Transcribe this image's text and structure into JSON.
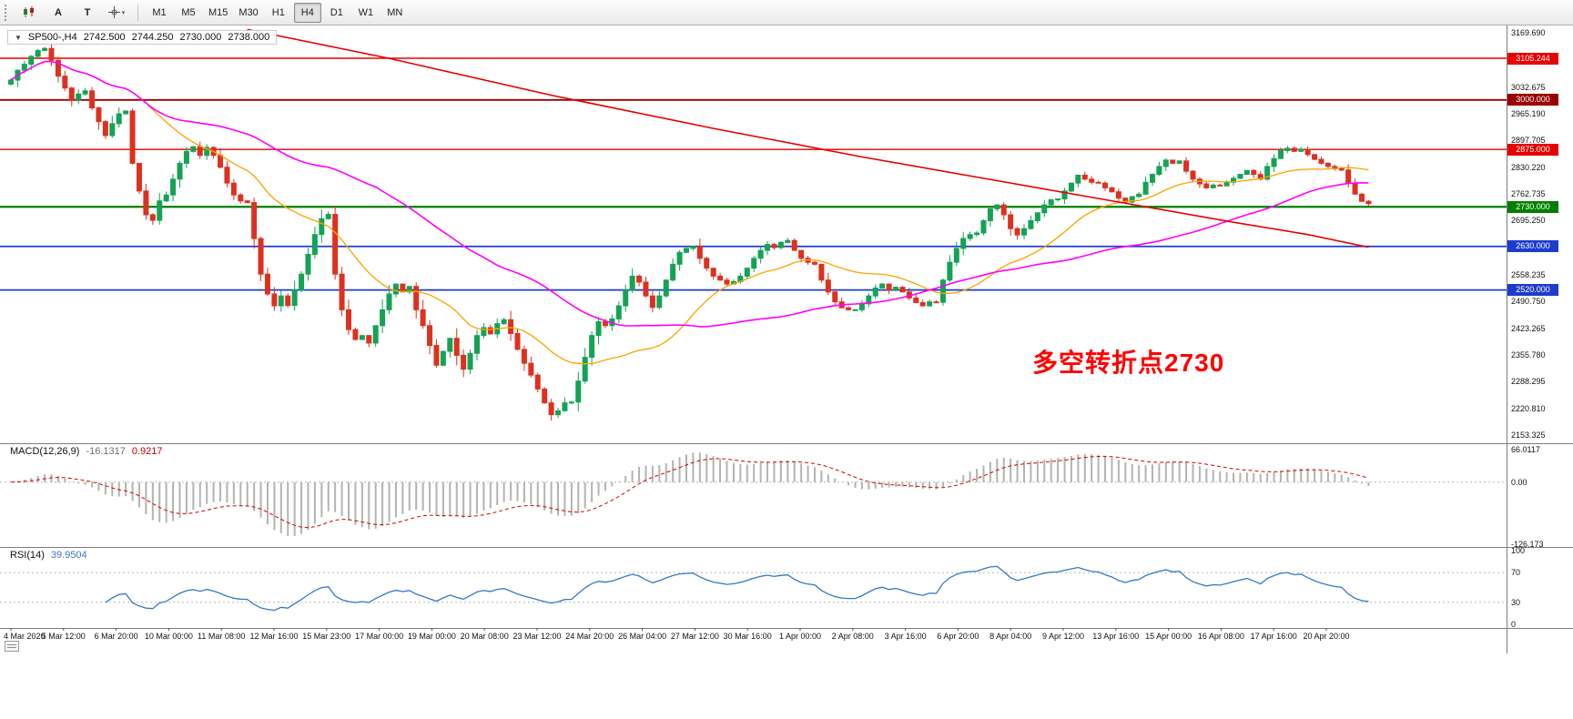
{
  "toolbar": {
    "icon_buttons": [
      {
        "name": "chart-type-icon"
      },
      {
        "name": "font-tool-button",
        "label": "A"
      },
      {
        "name": "text-tool-button",
        "label": "T"
      },
      {
        "name": "crosshair-tool-button",
        "dropdown": "▾"
      }
    ],
    "timeframes": [
      "M1",
      "M5",
      "M15",
      "M30",
      "H1",
      "H4",
      "D1",
      "W1",
      "MN"
    ],
    "active_timeframe": "H4"
  },
  "chart": {
    "symbol_header": {
      "collapse_icon": "▼",
      "symbol": "SP500-,H4",
      "open": "2742.500",
      "high": "2744.250",
      "low": "2730.000",
      "close": "2738.000"
    },
    "annotation": {
      "text": "多空转折点2730",
      "color": "#ff0000"
    },
    "price_axis_labels": [
      "3169.690",
      "3032.675",
      "2965.190",
      "2897.705",
      "2830.220",
      "2762.735",
      "2695.250",
      "2558.235",
      "2490.750",
      "2423.265",
      "2355.780",
      "2288.295",
      "2220.810",
      "2153.325"
    ],
    "levels": [
      {
        "label": "3105.244",
        "price": 3105.244,
        "color": "#e60000",
        "width": 1.4
      },
      {
        "label": "3000.000",
        "price": 3000.0,
        "color": "#990000",
        "width": 1.8
      },
      {
        "label": "2875.000",
        "price": 2875.0,
        "color": "#e60000",
        "width": 1.4
      },
      {
        "label": "2730.000",
        "price": 2730.0,
        "color": "#008000",
        "width": 2.2
      },
      {
        "label": "2630.000",
        "price": 2630.0,
        "color": "#1e3ccc",
        "width": 1.8
      },
      {
        "label": "2520.000",
        "price": 2520.0,
        "color": "#1e3ccc",
        "width": 1.8
      }
    ]
  },
  "chart_data": {
    "type": "candlestick",
    "symbol": "SP500-",
    "timeframe": "H4",
    "ylim": {
      "top": 3188,
      "bottom": 2133
    },
    "first_open": 3040,
    "closes": [
      3050,
      3075,
      3090,
      3110,
      3125,
      3130,
      3100,
      3060,
      3030,
      3000,
      3015,
      3023,
      2980,
      2945,
      2910,
      2940,
      2965,
      2972,
      2840,
      2770,
      2710,
      2696,
      2745,
      2760,
      2800,
      2840,
      2870,
      2882,
      2860,
      2880,
      2860,
      2830,
      2790,
      2760,
      2745,
      2741,
      2650,
      2560,
      2510,
      2480,
      2505,
      2481,
      2520,
      2560,
      2610,
      2660,
      2700,
      2711,
      2560,
      2470,
      2420,
      2395,
      2405,
      2386,
      2430,
      2470,
      2510,
      2535,
      2515,
      2529,
      2470,
      2430,
      2380,
      2330,
      2365,
      2398,
      2355,
      2320,
      2360,
      2405,
      2425,
      2409,
      2435,
      2445,
      2410,
      2370,
      2335,
      2305,
      2270,
      2235,
      2205,
      2215,
      2235,
      2237,
      2290,
      2350,
      2405,
      2440,
      2430,
      2447,
      2480,
      2520,
      2555,
      2540,
      2505,
      2476,
      2505,
      2545,
      2585,
      2615,
      2625,
      2630,
      2600,
      2575,
      2555,
      2545,
      2535,
      2541,
      2555,
      2575,
      2600,
      2620,
      2635,
      2627,
      2640,
      2645,
      2620,
      2600,
      2590,
      2585,
      2545,
      2515,
      2490,
      2475,
      2470,
      2470,
      2485,
      2505,
      2525,
      2535,
      2520,
      2527,
      2515,
      2500,
      2488,
      2480,
      2490,
      2489,
      2545,
      2590,
      2625,
      2650,
      2660,
      2664,
      2695,
      2725,
      2735,
      2710,
      2675,
      2659,
      2675,
      2695,
      2715,
      2735,
      2748,
      2750,
      2770,
      2790,
      2810,
      2800,
      2792,
      2790,
      2778,
      2768,
      2752,
      2742,
      2756,
      2762,
      2792,
      2812,
      2832,
      2848,
      2840,
      2846,
      2820,
      2800,
      2788,
      2778,
      2785,
      2783,
      2792,
      2802,
      2812,
      2822,
      2812,
      2800,
      2832,
      2852,
      2872,
      2878,
      2870,
      2875,
      2862,
      2850,
      2840,
      2832,
      2826,
      2823,
      2790,
      2762,
      2744,
      2738
    ],
    "up_color": "#14a356",
    "down_color": "#dd3120",
    "moving_averages": [
      {
        "name": "ma-fast-orange",
        "color": "#ffa200",
        "period": 21
      },
      {
        "name": "ma-mid-magenta",
        "color": "#ff00ff",
        "period": 55
      },
      {
        "name": "ma-slow-red",
        "color": "#e60000",
        "anchors": [
          [
            35,
            3178
          ],
          [
            56,
            3105
          ],
          [
            80,
            3012
          ],
          [
            104,
            2928
          ],
          [
            126,
            2856
          ],
          [
            146,
            2796
          ],
          [
            164,
            2742
          ],
          [
            180,
            2694
          ],
          [
            192,
            2660
          ],
          [
            201,
            2628
          ]
        ]
      }
    ],
    "x_labels": [
      "4 Mar 2020",
      "5 Mar 12:00",
      "6 Mar 20:00",
      "10 Mar 00:00",
      "11 Mar 08:00",
      "12 Mar 16:00",
      "15 Mar 23:00",
      "17 Mar 00:00",
      "19 Mar 00:00",
      "20 Mar 08:00",
      "23 Mar 12:00",
      "24 Mar 20:00",
      "26 Mar 04:00",
      "27 Mar 12:00",
      "30 Mar 16:00",
      "1 Apr 00:00",
      "2 Apr 08:00",
      "3 Apr 16:00",
      "6 Apr 20:00",
      "8 Apr 04:00",
      "9 Apr 12:00",
      "13 Apr 16:00",
      "15 Apr 00:00",
      "16 Apr 08:00",
      "17 Apr 16:00",
      "20 Apr 20:00"
    ]
  },
  "macd": {
    "label_name": "MACD(12,26,9)",
    "value_main": "-16.1317",
    "value_signal": "0.9217",
    "axis_labels": [
      {
        "text": "66.0117",
        "value": 66.0117
      },
      {
        "text": "0.00",
        "value": 0
      },
      {
        "text": "-126.173",
        "value": -126.173
      }
    ],
    "range": {
      "max": 66.0117,
      "min": -126.173
    },
    "histogram_color": "#b3b3b3",
    "signal_color": "#d40000"
  },
  "rsi": {
    "label_name": "RSI(14)",
    "value": "39.9504",
    "axis_labels": [
      {
        "text": "100",
        "value": 100
      },
      {
        "text": "70",
        "value": 70
      },
      {
        "text": "30",
        "value": 30
      },
      {
        "text": "0",
        "value": 0
      }
    ],
    "levels": [
      30,
      70
    ],
    "line_color": "#3a76c6"
  }
}
